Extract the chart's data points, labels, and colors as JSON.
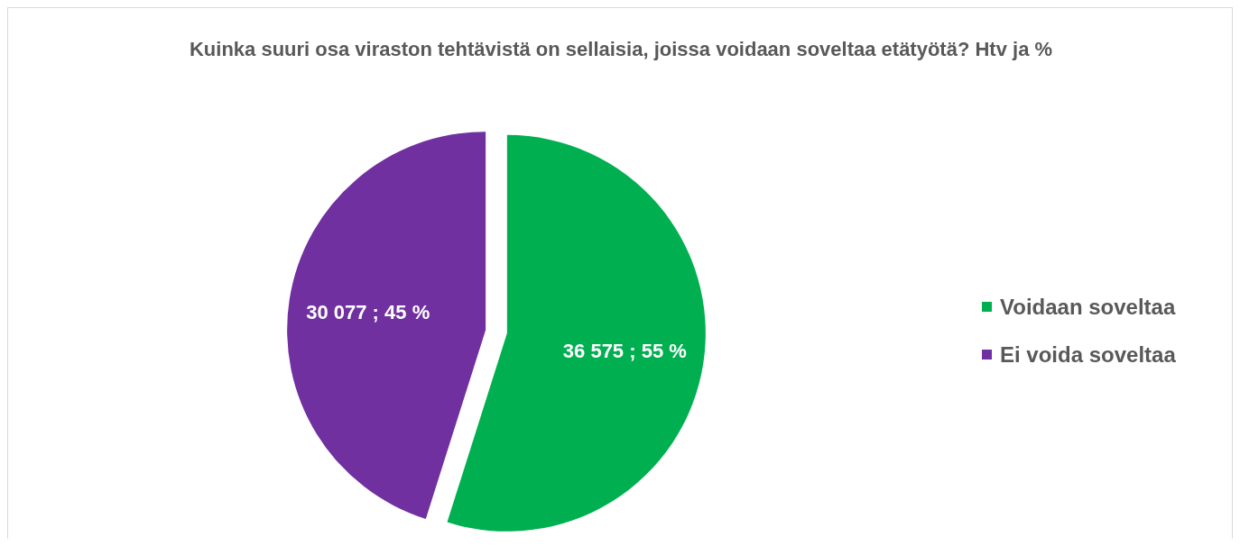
{
  "chart_data": {
    "type": "pie",
    "title": "Kuinka suuri osa viraston tehtävistä on sellaisia, joissa voidaan soveltaa etätyötä? Htv ja %",
    "categories": [
      "Voidaan soveltaa",
      "Ei voida soveltaa"
    ],
    "values": [
      36575,
      30077
    ],
    "colors": [
      "#00b050",
      "#7030a0"
    ],
    "value_labels": [
      "36 575 ; 55 %",
      "30 077 ; 45 %"
    ],
    "legend": "right"
  }
}
